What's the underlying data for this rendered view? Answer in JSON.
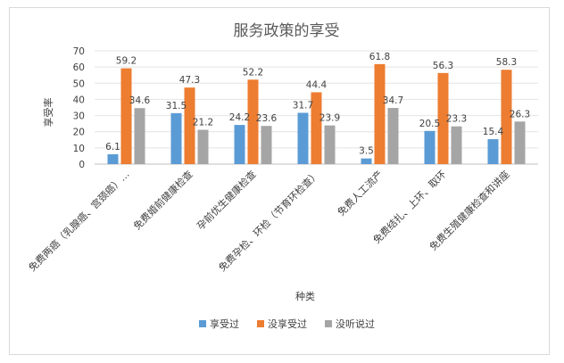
{
  "chart_data": {
    "type": "bar",
    "title": "服务政策的享受",
    "xlabel": "种类",
    "ylabel": "享受率",
    "ylim": [
      0,
      70
    ],
    "yticks": [
      0,
      10,
      20,
      30,
      40,
      50,
      60,
      70
    ],
    "grid": true,
    "legend": "bottom",
    "categories": [
      "免费两癌（乳腺癌、宫颈癌）…",
      "免费婚前健康检查",
      "孕前优生健康检查",
      "免费孕检、环检（节育环检查）",
      "免费人工流产",
      "免费结扎、上环、取环",
      "免费生殖健康检查和讲座"
    ],
    "series": [
      {
        "name": "享受过",
        "color": "#5b9bd5",
        "values": [
          6.1,
          31.5,
          24.2,
          31.7,
          3.5,
          20.5,
          15.4
        ]
      },
      {
        "name": "没享受过",
        "color": "#ed7d31",
        "values": [
          59.2,
          47.3,
          52.2,
          44.4,
          61.8,
          56.3,
          58.3
        ]
      },
      {
        "name": "没听说过",
        "color": "#a5a5a5",
        "values": [
          34.6,
          21.2,
          23.6,
          23.9,
          34.7,
          23.3,
          26.3
        ]
      }
    ]
  }
}
